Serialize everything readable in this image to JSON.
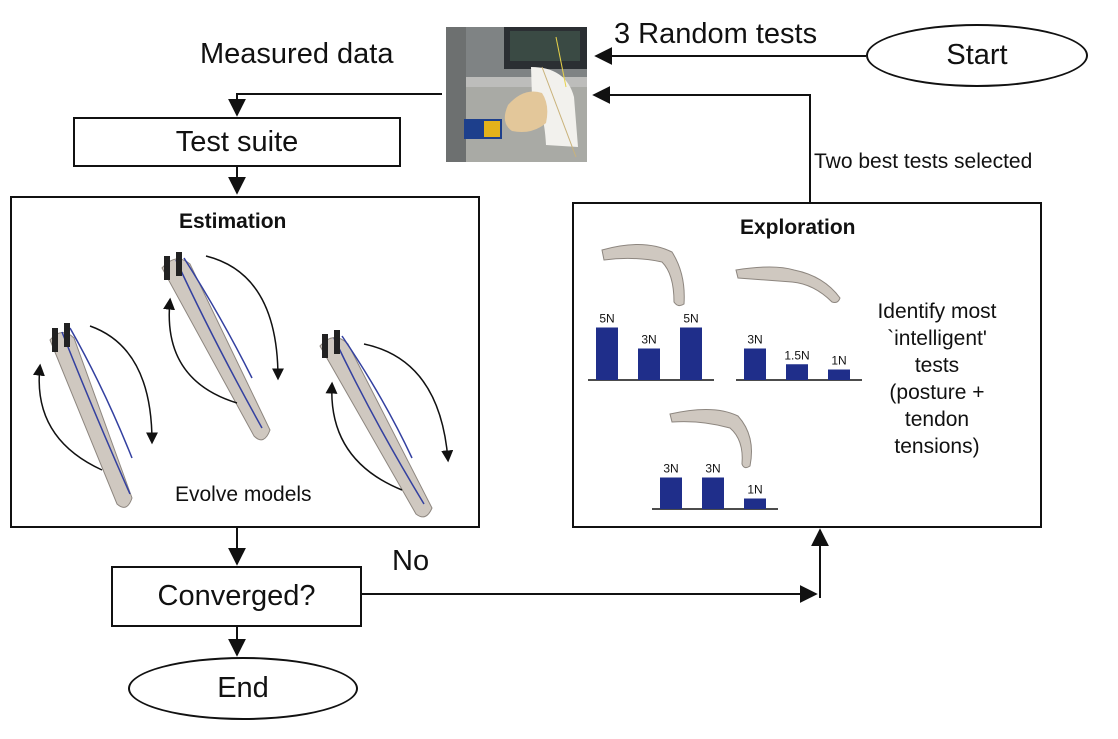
{
  "start": {
    "label": "Start"
  },
  "end": {
    "label": "End"
  },
  "arrows": {
    "random_tests": "3 Random tests",
    "measured_data": "Measured data",
    "two_best": "Two best tests selected",
    "no": "No"
  },
  "test_suite": {
    "label": "Test suite"
  },
  "converged": {
    "label": "Converged?"
  },
  "estimation": {
    "title": "Estimation",
    "caption": "Evolve models"
  },
  "exploration": {
    "title": "Exploration",
    "description_lines": [
      "Identify most",
      "`intelligent'",
      "tests",
      "(posture +",
      "tendon",
      "tensions)"
    ],
    "tests": [
      {
        "bars": [
          {
            "label": "5N",
            "value": 5
          },
          {
            "label": "3N",
            "value": 3
          },
          {
            "label": "5N",
            "value": 5
          }
        ]
      },
      {
        "bars": [
          {
            "label": "3N",
            "value": 3
          },
          {
            "label": "1.5N",
            "value": 1.5
          },
          {
            "label": "1N",
            "value": 1
          }
        ]
      },
      {
        "bars": [
          {
            "label": "3N",
            "value": 3
          },
          {
            "label": "3N",
            "value": 3
          },
          {
            "label": "1N",
            "value": 1
          }
        ]
      }
    ]
  },
  "colors": {
    "bar": "#1f2e8a",
    "bone": "#cfc8c0",
    "tendon": "#3340a0",
    "line": "#111111"
  }
}
